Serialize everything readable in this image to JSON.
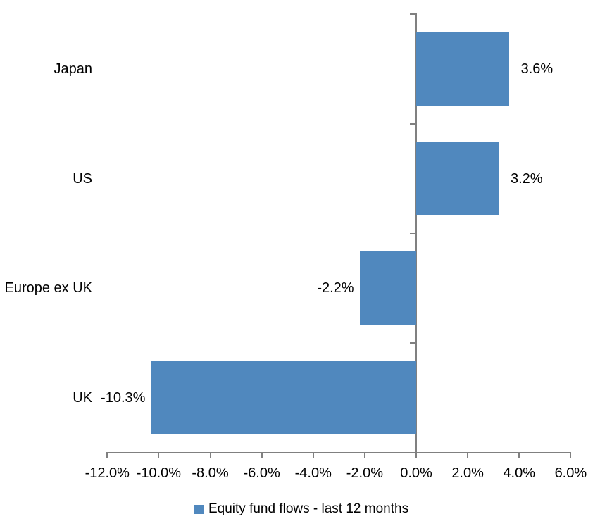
{
  "chart_data": {
    "type": "bar",
    "orientation": "horizontal",
    "title": "",
    "categories": [
      "Japan",
      "US",
      "Europe ex UK",
      "UK"
    ],
    "series": [
      {
        "name": "Equity fund flows - last 12 months",
        "values": [
          3.6,
          3.2,
          -2.2,
          -10.3
        ],
        "value_labels": [
          "3.6%",
          "3.2%",
          "-2.2%",
          "-10.3%"
        ]
      }
    ],
    "x_axis": {
      "tick_values": [
        -12,
        -10,
        -8,
        -6,
        -4,
        -2,
        0,
        2,
        4,
        6
      ],
      "tick_labels": [
        "-12.0%",
        "-10.0%",
        "-8.0%",
        "-6.0%",
        "-4.0%",
        "-2.0%",
        "0.0%",
        "2.0%",
        "4.0%",
        "6.0%"
      ],
      "xlim": [
        -12,
        6
      ]
    },
    "grid": false,
    "legend_position": "bottom",
    "colors": {
      "bar": "#5088BE",
      "axis": "#808080",
      "text": "#000000"
    }
  },
  "legend": {
    "label": "Equity fund flows - last 12 months"
  }
}
